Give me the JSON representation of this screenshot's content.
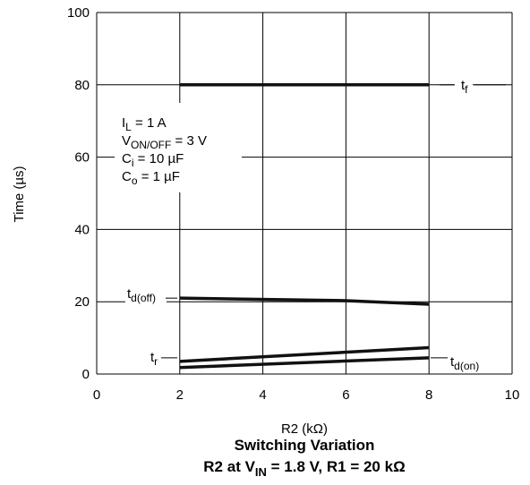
{
  "chart_data": {
    "type": "line",
    "xlabel": "R2 (kΩ)",
    "ylabel": "Time (µs)",
    "title": "Switching Variation",
    "subtitle": {
      "prefix": "R2 at V",
      "sub": "IN",
      "suffix": " = 1.8 V, R1 = 20 kΩ"
    },
    "xlim": [
      0,
      10
    ],
    "ylim": [
      0,
      100
    ],
    "x_ticks": [
      "0",
      "2",
      "4",
      "6",
      "8",
      "10"
    ],
    "y_ticks": [
      "0",
      "20",
      "40",
      "60",
      "80",
      "100"
    ],
    "grid": true,
    "series": [
      {
        "name": "tf",
        "label": {
          "main": "t",
          "sub": "f"
        },
        "x": [
          2,
          8
        ],
        "y": [
          80,
          80
        ]
      },
      {
        "name": "td(off)",
        "label": {
          "main": "t",
          "sub": "d(off)"
        },
        "x": [
          2,
          6,
          8
        ],
        "y": [
          21,
          20.3,
          19.3
        ]
      },
      {
        "name": "tr",
        "label": {
          "main": "t",
          "sub": "r"
        },
        "x": [
          2,
          8
        ],
        "y": [
          3.5,
          7.3
        ]
      },
      {
        "name": "td(on)",
        "label": {
          "main": "t",
          "sub": "d(on)"
        },
        "x": [
          2,
          8
        ],
        "y": [
          1.8,
          4.5
        ]
      }
    ],
    "conditions": [
      {
        "main": "I",
        "sub": "L",
        "rest": " = 1 A"
      },
      {
        "main": "V",
        "sub": "ON/OFF",
        "rest": " = 3 V"
      },
      {
        "main": "C",
        "sub": "i",
        "rest": " = 10 µF"
      },
      {
        "main": "C",
        "sub": "o",
        "rest": " = 1 µF"
      }
    ]
  }
}
